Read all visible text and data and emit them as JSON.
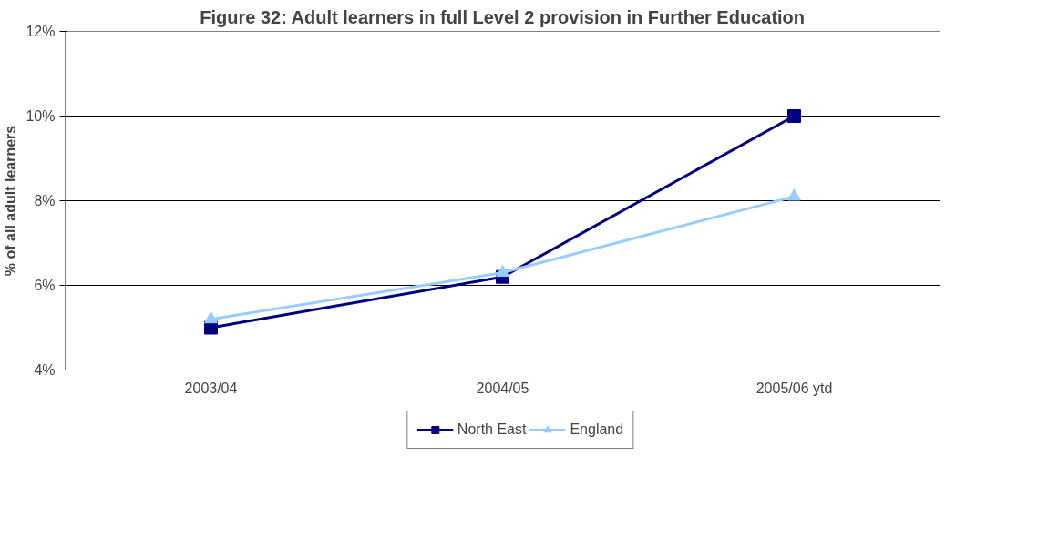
{
  "chart_data": {
    "type": "line",
    "title": "Figure 32: Adult learners in full Level 2 provision in Further Education",
    "ylabel": "% of all adult learners",
    "categories": [
      "2003/04",
      "2004/05",
      "2005/06 ytd"
    ],
    "series": [
      {
        "name": "North East",
        "color": "#000080",
        "values": [
          5.0,
          6.2,
          10.0
        ],
        "marker": "square"
      },
      {
        "name": "England",
        "color": "#99ccff",
        "values": [
          5.2,
          6.3,
          8.1
        ],
        "marker": "triangle"
      }
    ],
    "ylim": [
      4,
      12
    ],
    "yticks": [
      {
        "value": 4,
        "label": "4%"
      },
      {
        "value": 6,
        "label": "6%"
      },
      {
        "value": 8,
        "label": "8%"
      },
      {
        "value": 10,
        "label": "10%"
      },
      {
        "value": 12,
        "label": "12%"
      }
    ],
    "grid": "y",
    "legend": "bottom",
    "line_style": "solid"
  }
}
